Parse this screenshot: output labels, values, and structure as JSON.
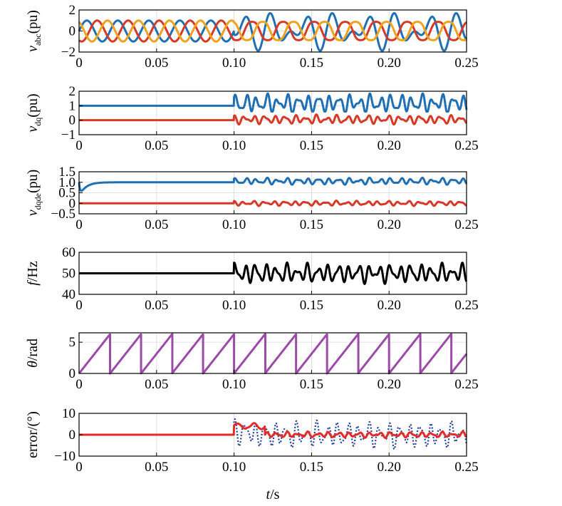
{
  "colors": {
    "blue": "#1f6fb5",
    "red": "#d63a26",
    "orange": "#f0a21c",
    "black": "#000000",
    "purple": "#9b4aa8",
    "bright_red": "#e52a28",
    "dotted_blue": "#1f3f9a"
  },
  "xlabel": {
    "italic": "t",
    "rest": "/s"
  },
  "chart_data": [
    {
      "type": "line",
      "id": "vabc",
      "ylabel": {
        "main": "v",
        "sub": "abc",
        "tail": "(pu)"
      },
      "ylim": [
        -2,
        2
      ],
      "yticks": [
        -2,
        0,
        2
      ],
      "ytick_labels": [
        "−2",
        "0",
        "2"
      ],
      "xlim": [
        0,
        0.25
      ],
      "xticks": [
        0,
        0.05,
        0.1,
        0.15,
        0.2,
        0.25
      ],
      "xtick_labels": [
        "0",
        "0.05",
        "0.10",
        "0.15",
        "0.20",
        "0.25"
      ],
      "series": [
        {
          "name": "va",
          "color": "blue",
          "amplitude_before": 1.0,
          "amplitude_after_peak": 2.0,
          "freq_hz": 50
        },
        {
          "name": "vb",
          "color": "red",
          "amplitude_before": 1.0,
          "amplitude_after": 1.0,
          "freq_hz": 50
        },
        {
          "name": "vc",
          "color": "orange",
          "amplitude_before": 1.0,
          "amplitude_after": 1.0,
          "freq_hz": 50
        }
      ],
      "disturbance_time": 0.1
    },
    {
      "type": "line",
      "id": "vdq",
      "ylabel": {
        "main": "v",
        "sub": "dq",
        "tail": "(pu)"
      },
      "ylim": [
        -1,
        2
      ],
      "yticks": [
        -1,
        0,
        1,
        2
      ],
      "ytick_labels": [
        "−1",
        "0",
        "1",
        "2"
      ],
      "xlim": [
        0,
        0.25
      ],
      "xticks": [
        0,
        0.05,
        0.1,
        0.15,
        0.2,
        0.25
      ],
      "xtick_labels": [
        "0",
        "0.05",
        "0.10",
        "0.15",
        "0.20",
        "0.25"
      ],
      "series": [
        {
          "name": "vd",
          "color": "blue",
          "steady": 1.0,
          "osc_range_after": [
            0.6,
            1.9
          ]
        },
        {
          "name": "vq",
          "color": "red",
          "steady": 0.0,
          "osc_range_after": [
            -0.4,
            0.5
          ]
        }
      ],
      "disturbance_time": 0.1
    },
    {
      "type": "line",
      "id": "vdqde",
      "ylabel": {
        "main": "v",
        "sub": "dqde",
        "tail": "(pu)"
      },
      "ylim": [
        -0.5,
        1.5
      ],
      "yticks": [
        -0.5,
        0,
        0.5,
        1.0,
        1.5
      ],
      "ytick_labels": [
        "−0.5",
        "0",
        "0.5",
        "1.0",
        "1.5"
      ],
      "xlim": [
        0,
        0.25
      ],
      "xticks": [
        0,
        0.05,
        0.1,
        0.15,
        0.2,
        0.25
      ],
      "xtick_labels": [
        "0",
        "0.05",
        "0.10",
        "0.15",
        "0.20",
        "0.25"
      ],
      "series": [
        {
          "name": "vd_de",
          "color": "blue",
          "initial_dip": 0.3,
          "steady": 1.0,
          "osc_range_after": [
            0.85,
            1.3
          ]
        },
        {
          "name": "vq_de",
          "color": "red",
          "steady": 0.0,
          "osc_range_after": [
            -0.15,
            0.15
          ]
        }
      ],
      "disturbance_time": 0.1
    },
    {
      "type": "line",
      "id": "freq",
      "ylabel": {
        "main": "f",
        "sub": "",
        "tail": "/Hz"
      },
      "ylim": [
        40,
        60
      ],
      "yticks": [
        40,
        50,
        60
      ],
      "ytick_labels": [
        "40",
        "50",
        "60"
      ],
      "xlim": [
        0,
        0.25
      ],
      "xticks": [
        0,
        0.05,
        0.1,
        0.15,
        0.2,
        0.25
      ],
      "xtick_labels": [
        "0",
        "0.05",
        "0.10",
        "0.15",
        "0.20",
        "0.25"
      ],
      "series": [
        {
          "name": "f",
          "color": "black",
          "steady": 50,
          "osc_range_after": [
            44,
            56
          ]
        }
      ],
      "disturbance_time": 0.1
    },
    {
      "type": "line",
      "id": "theta",
      "ylabel": {
        "main": "θ",
        "sub": "",
        "tail": "/rad"
      },
      "ylim": [
        0,
        6.5
      ],
      "yticks": [
        0,
        5
      ],
      "ytick_labels": [
        "0",
        "5"
      ],
      "xlim": [
        0,
        0.25
      ],
      "xticks": [
        0,
        0.05,
        0.1,
        0.15,
        0.2,
        0.25
      ],
      "xtick_labels": [
        "0",
        "0.05",
        "0.10",
        "0.15",
        "0.20",
        "0.25"
      ],
      "series": [
        {
          "name": "theta",
          "color": "purple",
          "sawtooth_period": 0.02,
          "max": 6.283
        }
      ]
    },
    {
      "type": "line",
      "id": "error",
      "ylabel": {
        "main": "error/(°)",
        "sub": "",
        "tail": ""
      },
      "ylim": [
        -10,
        10
      ],
      "yticks": [
        -10,
        0,
        10
      ],
      "ytick_labels": [
        "−10",
        "0",
        "10"
      ],
      "xlim": [
        0,
        0.25
      ],
      "xticks": [
        0,
        0.05,
        0.1,
        0.15,
        0.2,
        0.25
      ],
      "xtick_labels": [
        "0",
        "0.05",
        "0.10",
        "0.15",
        "0.20",
        "0.25"
      ],
      "series": [
        {
          "name": "error_dotted",
          "color": "dotted_blue",
          "style": "dotted",
          "peak_after": 8
        },
        {
          "name": "error_solid",
          "color": "bright_red",
          "style": "solid",
          "peak_after": 5
        }
      ],
      "disturbance_time": 0.1
    }
  ]
}
